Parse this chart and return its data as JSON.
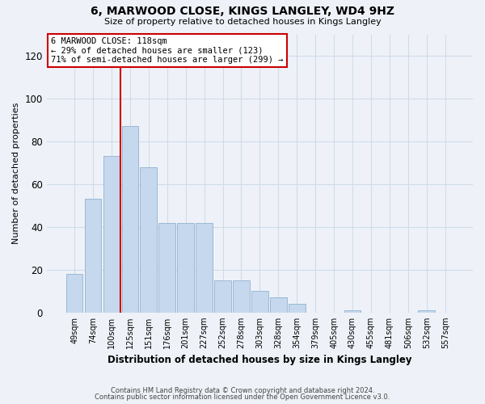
{
  "title": "6, MARWOOD CLOSE, KINGS LANGLEY, WD4 9HZ",
  "subtitle": "Size of property relative to detached houses in Kings Langley",
  "xlabel": "Distribution of detached houses by size in Kings Langley",
  "ylabel": "Number of detached properties",
  "footnote1": "Contains HM Land Registry data © Crown copyright and database right 2024.",
  "footnote2": "Contains public sector information licensed under the Open Government Licence v3.0.",
  "bar_labels": [
    "49sqm",
    "74sqm",
    "100sqm",
    "125sqm",
    "151sqm",
    "176sqm",
    "201sqm",
    "227sqm",
    "252sqm",
    "278sqm",
    "303sqm",
    "328sqm",
    "354sqm",
    "379sqm",
    "405sqm",
    "430sqm",
    "455sqm",
    "481sqm",
    "506sqm",
    "532sqm",
    "557sqm"
  ],
  "bar_values": [
    18,
    53,
    73,
    87,
    68,
    42,
    42,
    42,
    15,
    15,
    10,
    7,
    4,
    0,
    0,
    1,
    0,
    0,
    0,
    1,
    0
  ],
  "bar_color": "#c5d8ed",
  "bar_edge_color": "#9ab8d4",
  "ylim": [
    0,
    130
  ],
  "yticks": [
    0,
    20,
    40,
    60,
    80,
    100,
    120
  ],
  "line_x_index": 2.5,
  "annotation_text1": "6 MARWOOD CLOSE: 118sqm",
  "annotation_text2": "← 29% of detached houses are smaller (123)",
  "annotation_text3": "71% of semi-detached houses are larger (299) →",
  "annotation_box_facecolor": "#ffffff",
  "annotation_box_edgecolor": "#cc0000",
  "line_color": "#cc0000",
  "bg_color": "#eef2f8",
  "grid_color": "#d0dcea"
}
